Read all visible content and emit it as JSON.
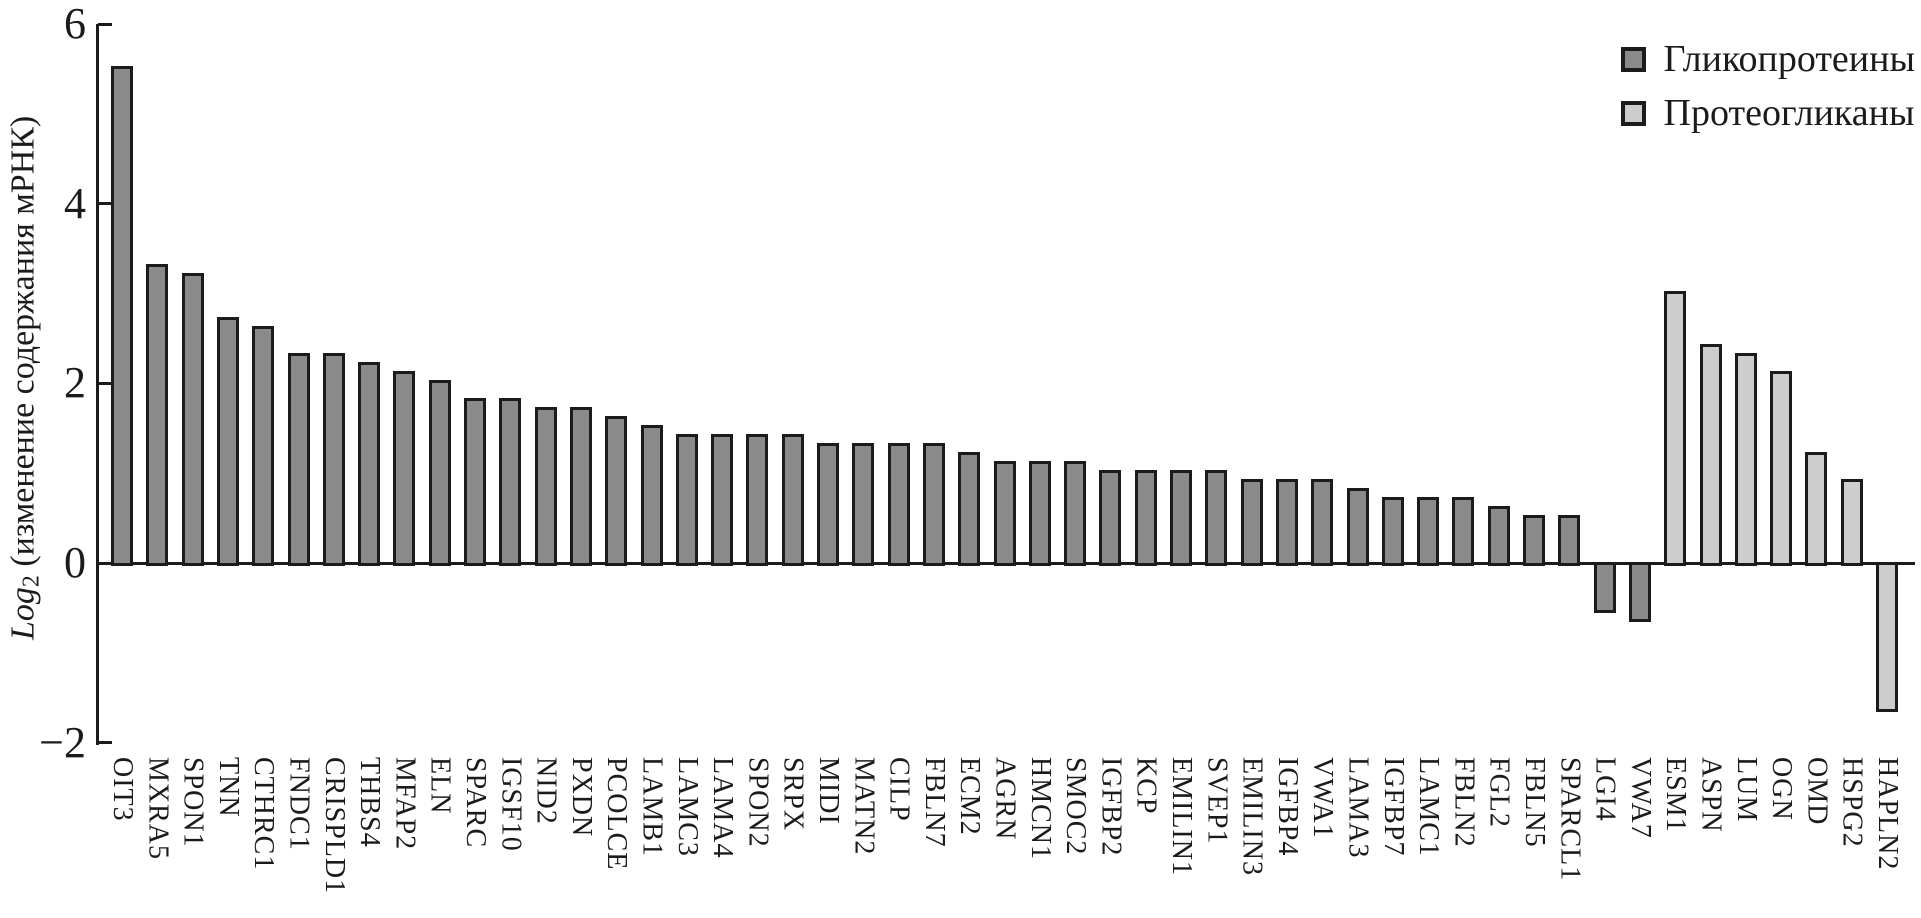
{
  "figure": {
    "background": "#ffffff",
    "axis_color": "#1b1b1b",
    "y_axis_caption": {
      "log": "Log",
      "sub": "2",
      "rest": " (изменение содержания мРНК)"
    }
  },
  "legend": {
    "items": [
      {
        "label": "Гликопротеины",
        "color": "#8a8a8a"
      },
      {
        "label": "Протеогликаны",
        "color": "#cdcdcd"
      }
    ]
  },
  "chart_data": {
    "type": "bar",
    "title": "",
    "xlabel": "",
    "ylabel": "Log2 (изменение содержания мРНК)",
    "ylim": [
      -2,
      6
    ],
    "yticks": [
      {
        "value": 6,
        "label": "6"
      },
      {
        "value": 4,
        "label": "4"
      },
      {
        "value": 2,
        "label": "2"
      },
      {
        "value": 0,
        "label": "0"
      },
      {
        "value": -2,
        "label": "−2"
      }
    ],
    "grid": false,
    "legend_position": "top-right",
    "series": [
      {
        "name": "Гликопротеины",
        "color": "#8a8a8a"
      },
      {
        "name": "Протеогликаны",
        "color": "#cdcdcd"
      }
    ],
    "bars": [
      {
        "label": "OIT3",
        "value": 5.5,
        "series": 0
      },
      {
        "label": "MXRA5",
        "value": 3.3,
        "series": 0
      },
      {
        "label": "SPON1",
        "value": 3.2,
        "series": 0
      },
      {
        "label": "TNN",
        "value": 2.7,
        "series": 0
      },
      {
        "label": "CTHRC1",
        "value": 2.6,
        "series": 0
      },
      {
        "label": "FNDC1",
        "value": 2.3,
        "series": 0
      },
      {
        "label": "CRISPLD1",
        "value": 2.3,
        "series": 0
      },
      {
        "label": "THBS4",
        "value": 2.2,
        "series": 0
      },
      {
        "label": "MFAP2",
        "value": 2.1,
        "series": 0
      },
      {
        "label": "ELN",
        "value": 2.0,
        "series": 0
      },
      {
        "label": "SPARC",
        "value": 1.8,
        "series": 0
      },
      {
        "label": "IGSF10",
        "value": 1.8,
        "series": 0
      },
      {
        "label": "NID2",
        "value": 1.7,
        "series": 0
      },
      {
        "label": "PXDN",
        "value": 1.7,
        "series": 0
      },
      {
        "label": "PCOLCE",
        "value": 1.6,
        "series": 0
      },
      {
        "label": "LAMB1",
        "value": 1.5,
        "series": 0
      },
      {
        "label": "LAMC3",
        "value": 1.4,
        "series": 0
      },
      {
        "label": "LAMA4",
        "value": 1.4,
        "series": 0
      },
      {
        "label": "SPON2",
        "value": 1.4,
        "series": 0
      },
      {
        "label": "SRPX",
        "value": 1.4,
        "series": 0
      },
      {
        "label": "MIDI",
        "value": 1.3,
        "series": 0
      },
      {
        "label": "MATN2",
        "value": 1.3,
        "series": 0
      },
      {
        "label": "CILP",
        "value": 1.3,
        "series": 0
      },
      {
        "label": "FBLN7",
        "value": 1.3,
        "series": 0
      },
      {
        "label": "ECM2",
        "value": 1.2,
        "series": 0
      },
      {
        "label": "AGRN",
        "value": 1.1,
        "series": 0
      },
      {
        "label": "HMCN1",
        "value": 1.1,
        "series": 0
      },
      {
        "label": "SMOC2",
        "value": 1.1,
        "series": 0
      },
      {
        "label": "IGFBP2",
        "value": 1.0,
        "series": 0
      },
      {
        "label": "KCP",
        "value": 1.0,
        "series": 0
      },
      {
        "label": "EMILIN1",
        "value": 1.0,
        "series": 0
      },
      {
        "label": "SVEP1",
        "value": 1.0,
        "series": 0
      },
      {
        "label": "EMILIN3",
        "value": 0.9,
        "series": 0
      },
      {
        "label": "IGFBP4",
        "value": 0.9,
        "series": 0
      },
      {
        "label": "VWA1",
        "value": 0.9,
        "series": 0
      },
      {
        "label": "LAMA3",
        "value": 0.8,
        "series": 0
      },
      {
        "label": "IGFBP7",
        "value": 0.7,
        "series": 0
      },
      {
        "label": "LAMC1",
        "value": 0.7,
        "series": 0
      },
      {
        "label": "FBLN2",
        "value": 0.7,
        "series": 0
      },
      {
        "label": "FGL2",
        "value": 0.6,
        "series": 0
      },
      {
        "label": "FBLN5",
        "value": 0.5,
        "series": 0
      },
      {
        "label": "SPARCL1",
        "value": 0.5,
        "series": 0
      },
      {
        "label": "LGI4",
        "value": -0.5,
        "series": 0
      },
      {
        "label": "VWA7",
        "value": -0.6,
        "series": 0
      },
      {
        "label": "ESM1",
        "value": 3.0,
        "series": 1
      },
      {
        "label": "ASPN",
        "value": 2.4,
        "series": 1
      },
      {
        "label": "LUM",
        "value": 2.3,
        "series": 1
      },
      {
        "label": "OGN",
        "value": 2.1,
        "series": 1
      },
      {
        "label": "OMD",
        "value": 1.2,
        "series": 1
      },
      {
        "label": "HSPG2",
        "value": 0.9,
        "series": 1
      },
      {
        "label": "HAPLN2",
        "value": -1.6,
        "series": 1
      }
    ]
  }
}
